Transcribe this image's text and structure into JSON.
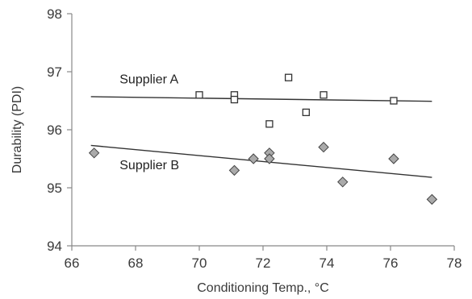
{
  "chart_data": {
    "type": "scatter",
    "title": "",
    "xlabel": "Conditioning Temp., °C",
    "ylabel": "Durability (PDI)",
    "xlim": [
      66,
      78
    ],
    "ylim": [
      94,
      98
    ],
    "xticks": [
      66,
      68,
      70,
      72,
      74,
      76,
      78
    ],
    "yticks": [
      94,
      95,
      96,
      97,
      98
    ],
    "grid": false,
    "legend": "none",
    "colors": {
      "axis": "#888888",
      "supplier_a_fill": "#ffffff",
      "supplier_a_stroke": "#333333",
      "supplier_b_fill": "#aaaaaa",
      "supplier_b_stroke": "#444444",
      "trendline": "#333333"
    },
    "series": [
      {
        "name": "Supplier A",
        "marker": "square",
        "points": [
          {
            "x": 70.0,
            "y": 96.6
          },
          {
            "x": 71.1,
            "y": 96.6
          },
          {
            "x": 71.1,
            "y": 96.52
          },
          {
            "x": 72.2,
            "y": 96.1
          },
          {
            "x": 72.8,
            "y": 96.9
          },
          {
            "x": 73.35,
            "y": 96.3
          },
          {
            "x": 73.9,
            "y": 96.6
          },
          {
            "x": 76.1,
            "y": 96.5
          }
        ],
        "trendline": {
          "x": [
            66.6,
            77.3
          ],
          "y": [
            96.57,
            96.49
          ]
        }
      },
      {
        "name": "Supplier B",
        "marker": "diamond",
        "points": [
          {
            "x": 66.7,
            "y": 95.6
          },
          {
            "x": 71.1,
            "y": 95.3
          },
          {
            "x": 71.7,
            "y": 95.5
          },
          {
            "x": 72.2,
            "y": 95.6
          },
          {
            "x": 72.2,
            "y": 95.5
          },
          {
            "x": 73.9,
            "y": 95.7
          },
          {
            "x": 74.5,
            "y": 95.1
          },
          {
            "x": 76.1,
            "y": 95.5
          },
          {
            "x": 77.3,
            "y": 94.8
          }
        ],
        "trendline": {
          "x": [
            66.6,
            77.3
          ],
          "y": [
            95.73,
            95.18
          ]
        }
      }
    ],
    "annotations": [
      {
        "text": "Supplier A",
        "x": 67.5,
        "y": 96.8
      },
      {
        "text": "Supplier B",
        "x": 67.5,
        "y": 95.32
      }
    ]
  }
}
